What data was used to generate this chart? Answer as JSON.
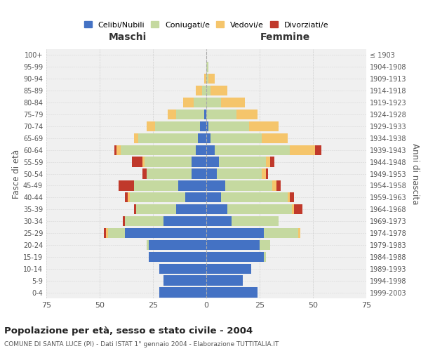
{
  "age_groups": [
    "0-4",
    "5-9",
    "10-14",
    "15-19",
    "20-24",
    "25-29",
    "30-34",
    "35-39",
    "40-44",
    "45-49",
    "50-54",
    "55-59",
    "60-64",
    "65-69",
    "70-74",
    "75-79",
    "80-84",
    "85-89",
    "90-94",
    "95-99",
    "100+"
  ],
  "birth_years": [
    "1999-2003",
    "1994-1998",
    "1989-1993",
    "1984-1988",
    "1979-1983",
    "1974-1978",
    "1969-1973",
    "1964-1968",
    "1959-1963",
    "1954-1958",
    "1949-1953",
    "1944-1948",
    "1939-1943",
    "1934-1938",
    "1929-1933",
    "1924-1928",
    "1919-1923",
    "1914-1918",
    "1909-1913",
    "1904-1908",
    "≤ 1903"
  ],
  "male": {
    "celibi": [
      22,
      20,
      22,
      27,
      27,
      38,
      20,
      14,
      10,
      13,
      7,
      7,
      5,
      4,
      3,
      1,
      0,
      0,
      0,
      0,
      0
    ],
    "coniugati": [
      0,
      0,
      0,
      0,
      1,
      8,
      18,
      19,
      26,
      21,
      21,
      22,
      35,
      28,
      21,
      13,
      6,
      2,
      0,
      0,
      0
    ],
    "vedovi": [
      0,
      0,
      0,
      0,
      0,
      1,
      0,
      0,
      1,
      0,
      0,
      1,
      2,
      2,
      4,
      4,
      5,
      3,
      1,
      0,
      0
    ],
    "divorziati": [
      0,
      0,
      0,
      0,
      0,
      1,
      1,
      1,
      1,
      7,
      2,
      5,
      1,
      0,
      0,
      0,
      0,
      0,
      0,
      0,
      0
    ]
  },
  "female": {
    "nubili": [
      24,
      17,
      21,
      27,
      25,
      27,
      12,
      10,
      7,
      9,
      5,
      6,
      4,
      2,
      1,
      0,
      0,
      0,
      0,
      0,
      0
    ],
    "coniugate": [
      0,
      0,
      0,
      1,
      5,
      16,
      22,
      30,
      31,
      22,
      21,
      22,
      35,
      24,
      19,
      14,
      7,
      2,
      1,
      1,
      0
    ],
    "vedove": [
      0,
      0,
      0,
      0,
      0,
      1,
      0,
      1,
      1,
      2,
      2,
      2,
      12,
      12,
      14,
      10,
      11,
      8,
      3,
      0,
      0
    ],
    "divorziate": [
      0,
      0,
      0,
      0,
      0,
      0,
      0,
      4,
      2,
      2,
      1,
      2,
      3,
      0,
      0,
      0,
      0,
      0,
      0,
      0,
      0
    ]
  },
  "colors": {
    "celibi": "#4472C4",
    "coniugati": "#C5D9A0",
    "vedovi": "#F5C56B",
    "divorziati": "#C0392B"
  },
  "title": "Popolazione per età, sesso e stato civile - 2004",
  "subtitle": "COMUNE DI SANTA LUCE (PI) - Dati ISTAT 1° gennaio 2004 - Elaborazione TUTTITALIA.IT",
  "xlabel_left": "Maschi",
  "xlabel_right": "Femmine",
  "ylabel_left": "Fasce di età",
  "ylabel_right": "Anni di nascita",
  "xlim": 75,
  "background_color": "#ffffff",
  "plot_bg_color": "#f0f0f0",
  "grid_color": "#cccccc",
  "legend_labels": [
    "Celibi/Nubili",
    "Coniugati/e",
    "Vedovi/e",
    "Divorziati/e"
  ]
}
